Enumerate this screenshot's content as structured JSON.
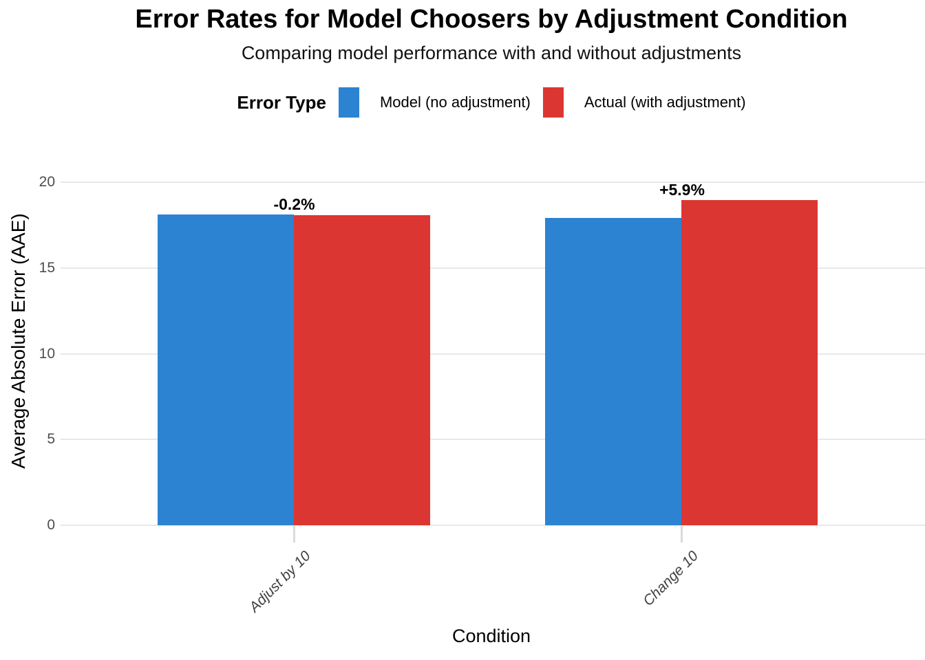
{
  "chart": {
    "title": "Error Rates for Model Choosers by Adjustment Condition",
    "subtitle": "Comparing model performance with and without adjustments",
    "legend": {
      "title": "Error Type",
      "items": [
        {
          "label": "Model (no adjustment)",
          "color": "#2b83d2"
        },
        {
          "label": "Actual (with adjustment)",
          "color": "#dc3632"
        }
      ]
    },
    "xlabel": "Condition",
    "ylabel": "Average Absolute Error (AAE)"
  },
  "chart_data": {
    "type": "bar",
    "title": "Error Rates for Model Choosers by Adjustment Condition",
    "subtitle": "Comparing model performance with and without adjustments",
    "xlabel": "Condition",
    "ylabel": "Average Absolute Error (AAE)",
    "categories": [
      "Adjust by 10",
      "Change 10"
    ],
    "series": [
      {
        "name": "Model (no adjustment)",
        "key": "model",
        "color": "#2b83d2",
        "values": [
          18.1,
          17.9
        ]
      },
      {
        "name": "Actual (with adjustment)",
        "key": "actual",
        "color": "#dc3632",
        "values": [
          18.06,
          18.95
        ]
      }
    ],
    "annotations": [
      "-0.2%",
      "+5.9%"
    ],
    "ylim": [
      0,
      20
    ],
    "yticks": [
      0,
      5,
      10,
      15,
      20
    ],
    "grid": "horizontal-major",
    "legend_position": "top-center",
    "colors": {
      "gridline": "#e8e8e8",
      "tick": "#dadada",
      "axis_text": "#4d4d4d",
      "category_text": "#404040",
      "text": "#000000",
      "background": "#ffffff"
    }
  }
}
